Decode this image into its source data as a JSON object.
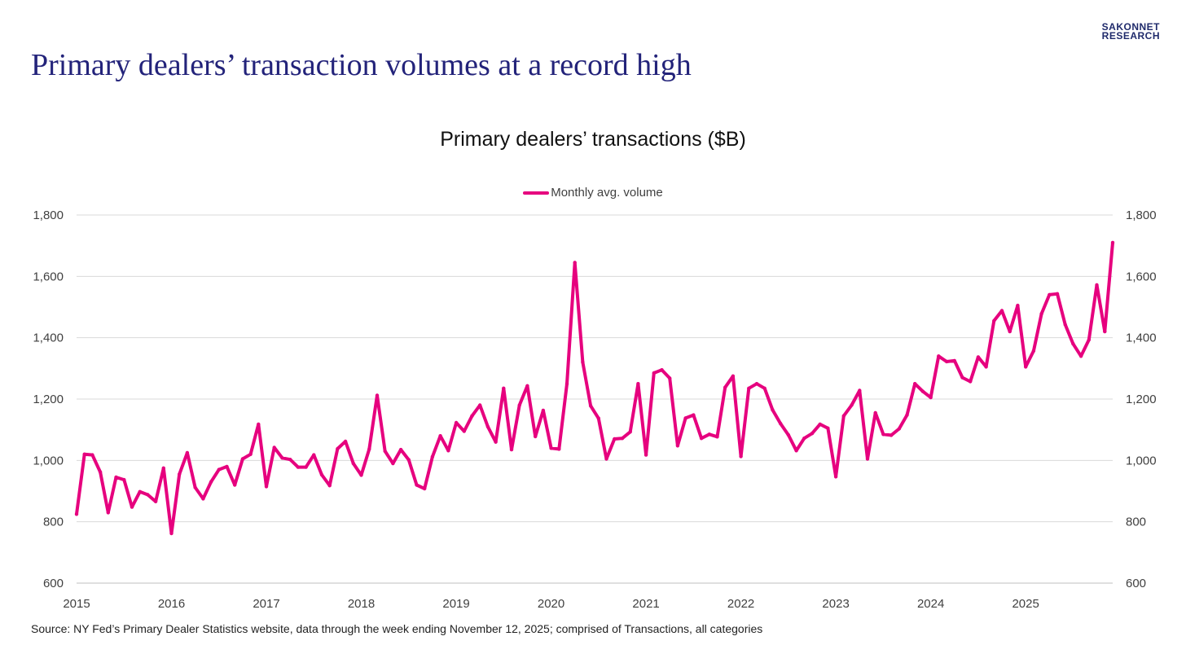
{
  "brand": {
    "line1": "SAKONNET",
    "line2": "RESEARCH"
  },
  "page_title": "Primary dealers’ transaction volumes at a record high",
  "source_note": "Source: NY Fed’s Primary Dealer Statistics website, data through the week ending November 12, 2025; comprised of Transactions, all categories",
  "colors": {
    "series": "#e6007e",
    "title": "#23237a",
    "brand": "#1f2a6b",
    "grid": "#d9d9d9"
  },
  "chart_data": {
    "type": "line",
    "title": "Primary dealers’ transactions ($B)",
    "legend": {
      "position": "top-center",
      "entries": [
        "Monthly avg. volume"
      ]
    },
    "xlabel": "",
    "ylabel": "",
    "ylim": [
      600,
      1800
    ],
    "yticks": [
      600,
      800,
      1000,
      1200,
      1400,
      1600,
      1800
    ],
    "ytick_labels": [
      "600",
      "800",
      "1,000",
      "1,200",
      "1,400",
      "1,600",
      "1,800"
    ],
    "secondary_y_axis_mirrored": true,
    "xlim": [
      2015.0,
      2025.917
    ],
    "x_ticks": [
      2015,
      2016,
      2017,
      2018,
      2019,
      2020,
      2021,
      2022,
      2023,
      2024,
      2025
    ],
    "x_tick_labels": [
      "2015",
      "2016",
      "2017",
      "2018",
      "2019",
      "2020",
      "2021",
      "2022",
      "2023",
      "2024",
      "2025"
    ],
    "grid": "horizontal",
    "series": [
      {
        "name": "Monthly avg. volume",
        "frequency": "monthly",
        "start": "2015-01",
        "values": [
          825,
          1020,
          1018,
          962,
          830,
          945,
          937,
          848,
          898,
          888,
          866,
          975,
          762,
          955,
          1025,
          912,
          875,
          930,
          970,
          980,
          920,
          1005,
          1020,
          1118,
          915,
          1042,
          1008,
          1003,
          978,
          978,
          1018,
          953,
          918,
          1038,
          1062,
          990,
          952,
          1037,
          1212,
          1030,
          990,
          1035,
          1002,
          920,
          908,
          1012,
          1080,
          1032,
          1123,
          1095,
          1145,
          1180,
          1110,
          1060,
          1235,
          1035,
          1180,
          1243,
          1078,
          1163,
          1040,
          1037,
          1250,
          1645,
          1320,
          1178,
          1137,
          1005,
          1070,
          1072,
          1093,
          1250,
          1018,
          1285,
          1295,
          1268,
          1048,
          1138,
          1148,
          1072,
          1085,
          1077,
          1238,
          1275,
          1013,
          1235,
          1250,
          1235,
          1165,
          1120,
          1083,
          1032,
          1072,
          1088,
          1118,
          1105,
          947,
          1145,
          1180,
          1228,
          1005,
          1155,
          1085,
          1082,
          1103,
          1148,
          1250,
          1225,
          1205,
          1340,
          1322,
          1325,
          1270,
          1257,
          1337,
          1305,
          1455,
          1488,
          1420,
          1505,
          1305,
          1357,
          1478,
          1540,
          1543,
          1443,
          1380,
          1340,
          1393,
          1572,
          1420,
          1710
        ]
      }
    ]
  }
}
